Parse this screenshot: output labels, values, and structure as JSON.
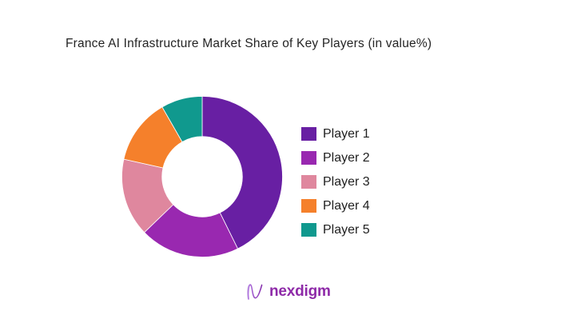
{
  "page": {
    "background": "#ffffff"
  },
  "chart_data": {
    "type": "pie",
    "subtype": "donut",
    "title": "France AI Infrastructure Market Share of Key Players (in value%)",
    "categories": [
      "Player 1",
      "Player 2",
      "Player 3",
      "Player 4",
      "Player 5"
    ],
    "values": [
      42.7,
      20.1,
      15.7,
      13.2,
      8.3
    ],
    "unit": "percent",
    "colors": [
      "#681FA3",
      "#9928B0",
      "#DF879E",
      "#F5802B",
      "#10998E"
    ],
    "start_angle_deg": 0,
    "direction": "clockwise",
    "inner_radius_ratio": 0.5,
    "legend_position": "right",
    "slice_labels_shown": false
  },
  "legend": {
    "items": [
      {
        "label": "Player 1",
        "color": "#681FA3"
      },
      {
        "label": "Player 2",
        "color": "#9928B0"
      },
      {
        "label": "Player 3",
        "color": "#DF879E"
      },
      {
        "label": "Player 4",
        "color": "#F5802B"
      },
      {
        "label": "Player 5",
        "color": "#10998E"
      }
    ]
  },
  "branding": {
    "logo_text": "nexdigm",
    "logo_color": "#8E2AA8"
  }
}
